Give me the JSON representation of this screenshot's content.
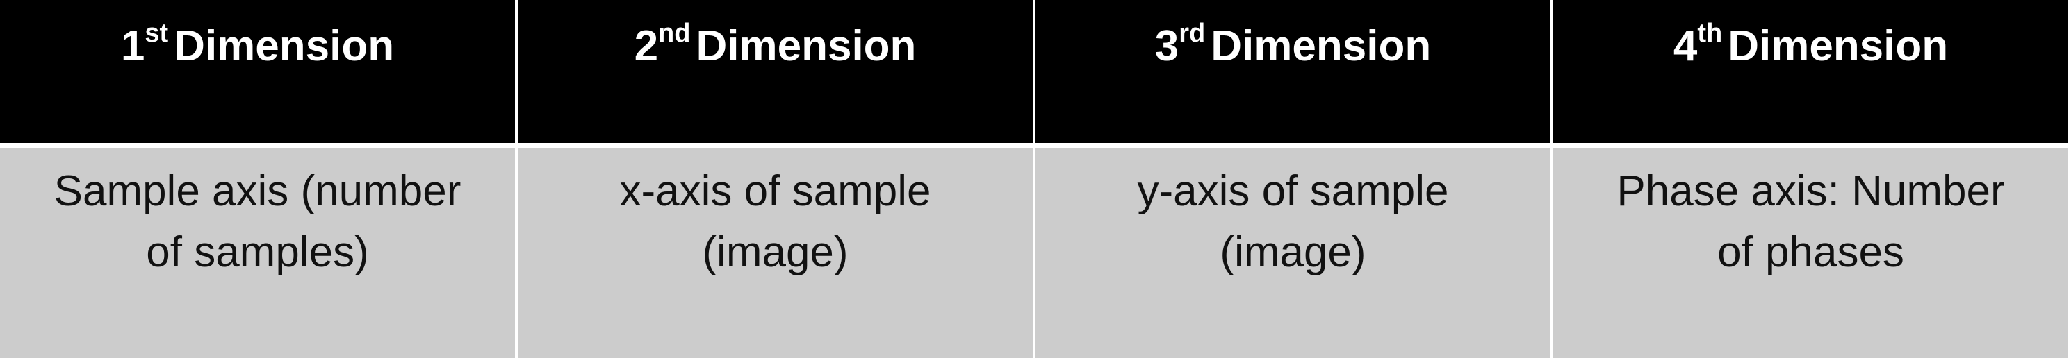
{
  "table": {
    "columns": [
      {
        "num": "1",
        "sup": "st",
        "word": "Dimension",
        "desc1": "Sample axis (number",
        "desc2": "of samples)"
      },
      {
        "num": "2",
        "sup": "nd",
        "word": "Dimension",
        "desc1": "x-axis of sample",
        "desc2": "(image)"
      },
      {
        "num": "3",
        "sup": "rd",
        "word": "Dimension",
        "desc1": "y-axis of sample",
        "desc2": "(image)"
      },
      {
        "num": "4",
        "sup": "th",
        "word": "Dimension",
        "desc1": "Phase axis: Number",
        "desc2": "of phases"
      }
    ]
  },
  "colors": {
    "header_bg": "#000000",
    "header_text": "#ffffff",
    "body_bg": "#cccccc",
    "body_text": "#111111",
    "grid_lines": "#ffffff"
  }
}
